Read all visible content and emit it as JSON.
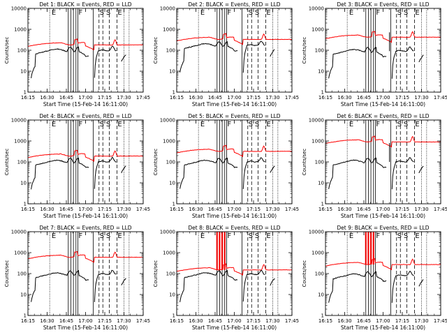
{
  "figure": {
    "xlabel": "Start Time (15-Feb-14 16:11:00)",
    "ylabel": "Counts/sec",
    "legend": "BLACK = Events, RED = LLD",
    "colors": {
      "events": "#000000",
      "lld": "#ff0000"
    }
  },
  "chart_data": {
    "type": "line",
    "x_ticks": [
      "16:15",
      "16:30",
      "16:45",
      "17:00",
      "17:15",
      "17:30",
      "17:45"
    ],
    "x_range_minutes_after_start": [
      0,
      90
    ],
    "y_scale": "log",
    "y_ticks": [
      "1",
      "10",
      "100",
      "1000",
      "10000"
    ],
    "ylim": [
      1,
      10000
    ],
    "vertical_markers": {
      "dotted": [
        17,
        75,
        79
      ],
      "solid": [
        31.5,
        33.5,
        35.5,
        37.5,
        39,
        51
      ],
      "dashed": [
        55.5,
        58.5,
        63.5,
        69.5
      ]
    },
    "marker_letters": [
      {
        "t": 18.5,
        "text": "E"
      },
      {
        "t": 39.5,
        "text": "F"
      },
      {
        "t": 56,
        "text": "S"
      },
      {
        "t": 61,
        "text": "S"
      },
      {
        "t": 70,
        "text": "E"
      }
    ],
    "panels": [
      {
        "title": "Det 1",
        "lld_base": 180,
        "ev_base": 95,
        "lld_spike": 0,
        "ev_spike": 0
      },
      {
        "title": "Det 2",
        "lld_base": 330,
        "ev_base": 170,
        "lld_spike": 0,
        "ev_spike": 0
      },
      {
        "title": "Det 3",
        "lld_base": 420,
        "ev_base": 90,
        "lld_spike": 0,
        "ev_spike": 1
      },
      {
        "title": "Det 4",
        "lld_base": 190,
        "ev_base": 100,
        "lld_spike": 0,
        "ev_spike": 0
      },
      {
        "title": "Det 5",
        "lld_base": 320,
        "ev_base": 100,
        "lld_spike": 0,
        "ev_spike": 0
      },
      {
        "title": "Det 6",
        "lld_base": 900,
        "ev_base": 100,
        "lld_spike": 0,
        "ev_spike": 1
      },
      {
        "title": "Det 7",
        "lld_base": 600,
        "ev_base": 90,
        "lld_spike": 0,
        "ev_spike": 0
      },
      {
        "title": "Det 8",
        "lld_base": 150,
        "ev_base": 90,
        "lld_spike": 1,
        "ev_spike": 0
      },
      {
        "title": "Det 9",
        "lld_base": 270,
        "ev_base": 80,
        "lld_spike": 1,
        "ev_spike": 0
      }
    ]
  }
}
